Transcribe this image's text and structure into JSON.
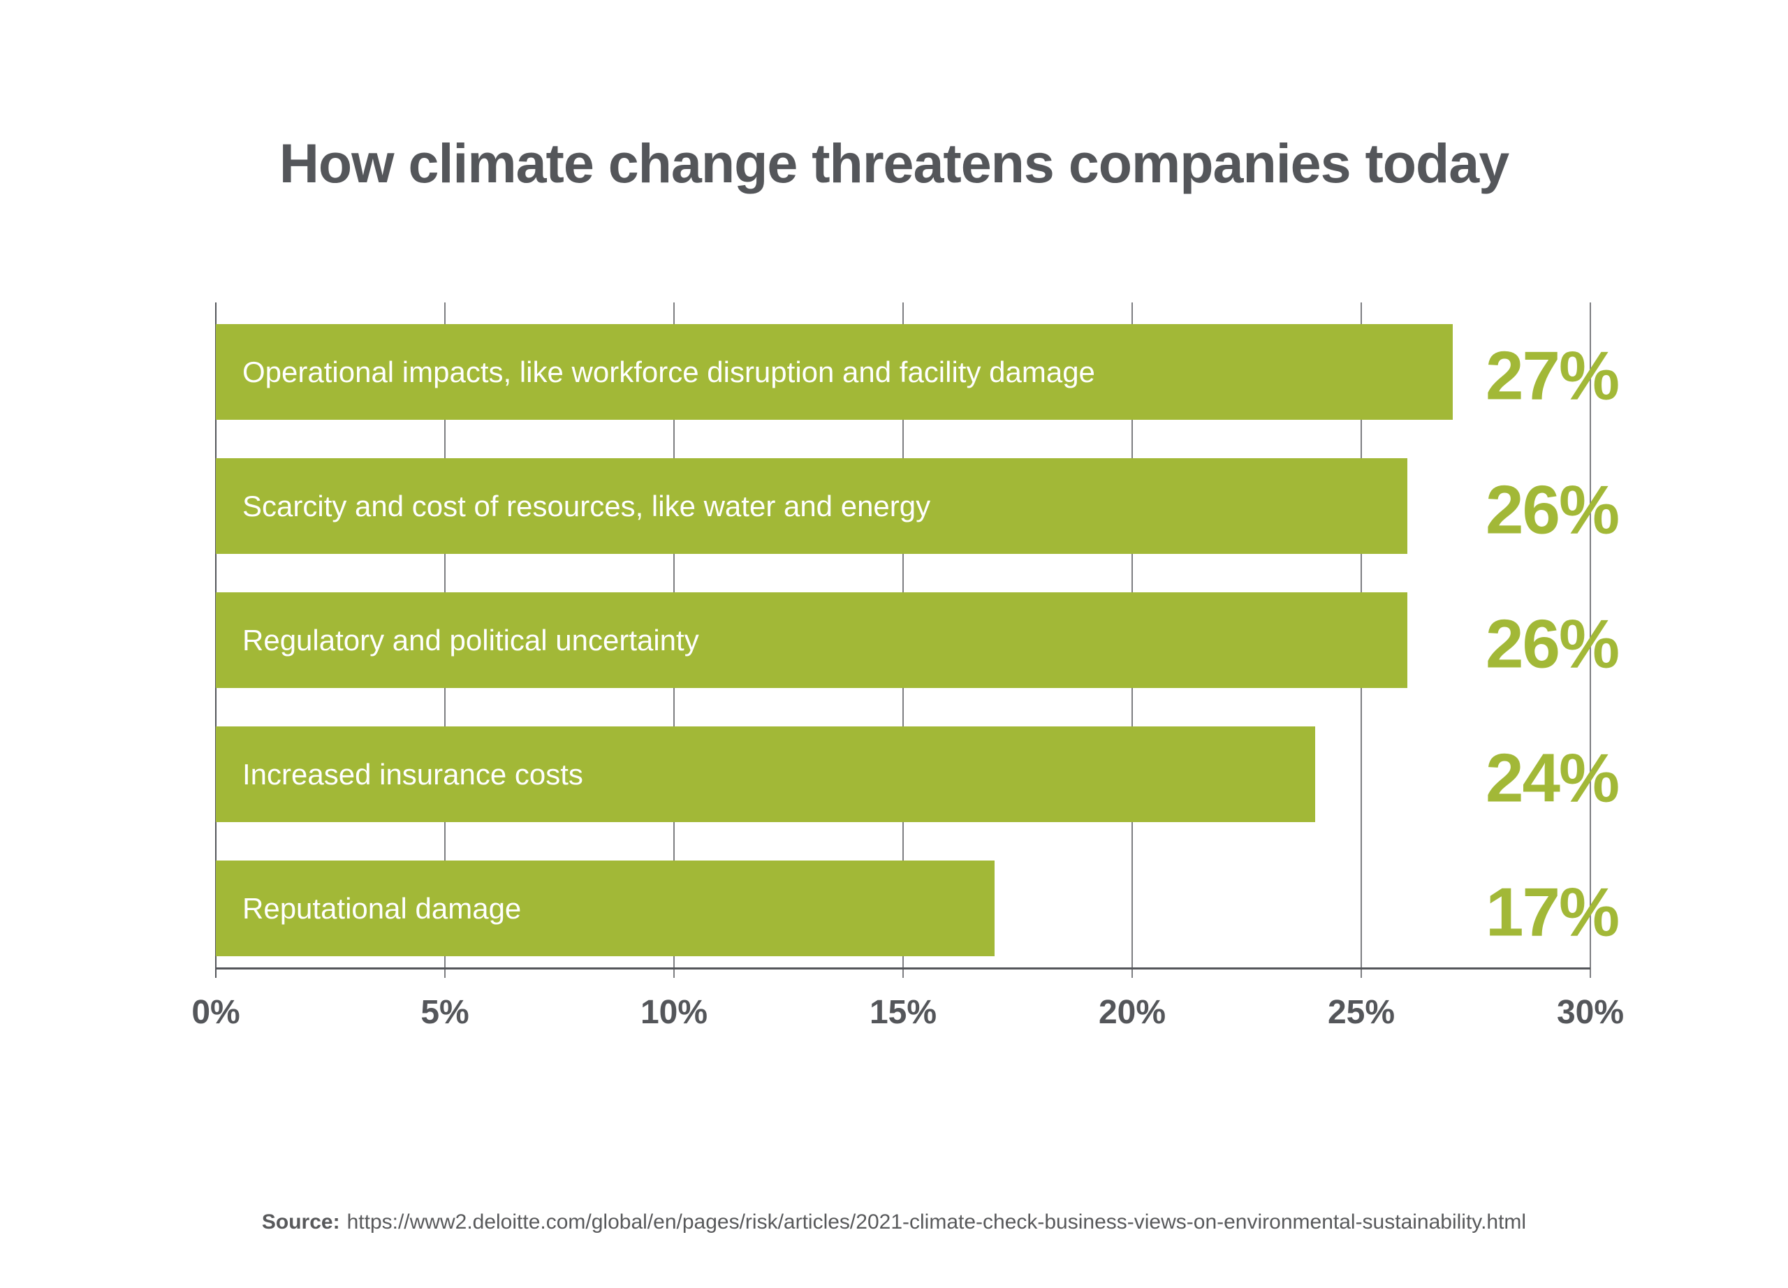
{
  "title": "How climate change threatens companies today",
  "chart_data": {
    "type": "bar",
    "orientation": "horizontal",
    "title": "How climate change threatens companies today",
    "categories": [
      "Operational impacts, like workforce disruption and facility damage",
      "Scarcity and cost of resources, like water and energy",
      "Regulatory and political uncertainty",
      "Increased insurance costs",
      "Reputational damage"
    ],
    "values": [
      27,
      26,
      26,
      24,
      17
    ],
    "value_labels": [
      "27%",
      "26%",
      "26%",
      "24%",
      "17%"
    ],
    "x_ticks": [
      "0%",
      "5%",
      "10%",
      "15%",
      "20%",
      "25%",
      "30%"
    ],
    "xlim": [
      0,
      30
    ],
    "xlabel": "",
    "ylabel": "",
    "grid": "vertical-only",
    "legend": "none",
    "colors": {
      "bar": "#a2b837",
      "bar_text": "#ffffff",
      "value_text": "#a2b837",
      "axis_text": "#54565a",
      "gridline": "#7d7e81",
      "axis_line": "#54565a",
      "title_text": "#54565a",
      "background": "#ffffff"
    }
  },
  "source": {
    "label": "Source:",
    "url": "https://www2.deloitte.com/global/en/pages/risk/articles/2021-climate-check-business-views-on-environmental-sustainability.html"
  }
}
